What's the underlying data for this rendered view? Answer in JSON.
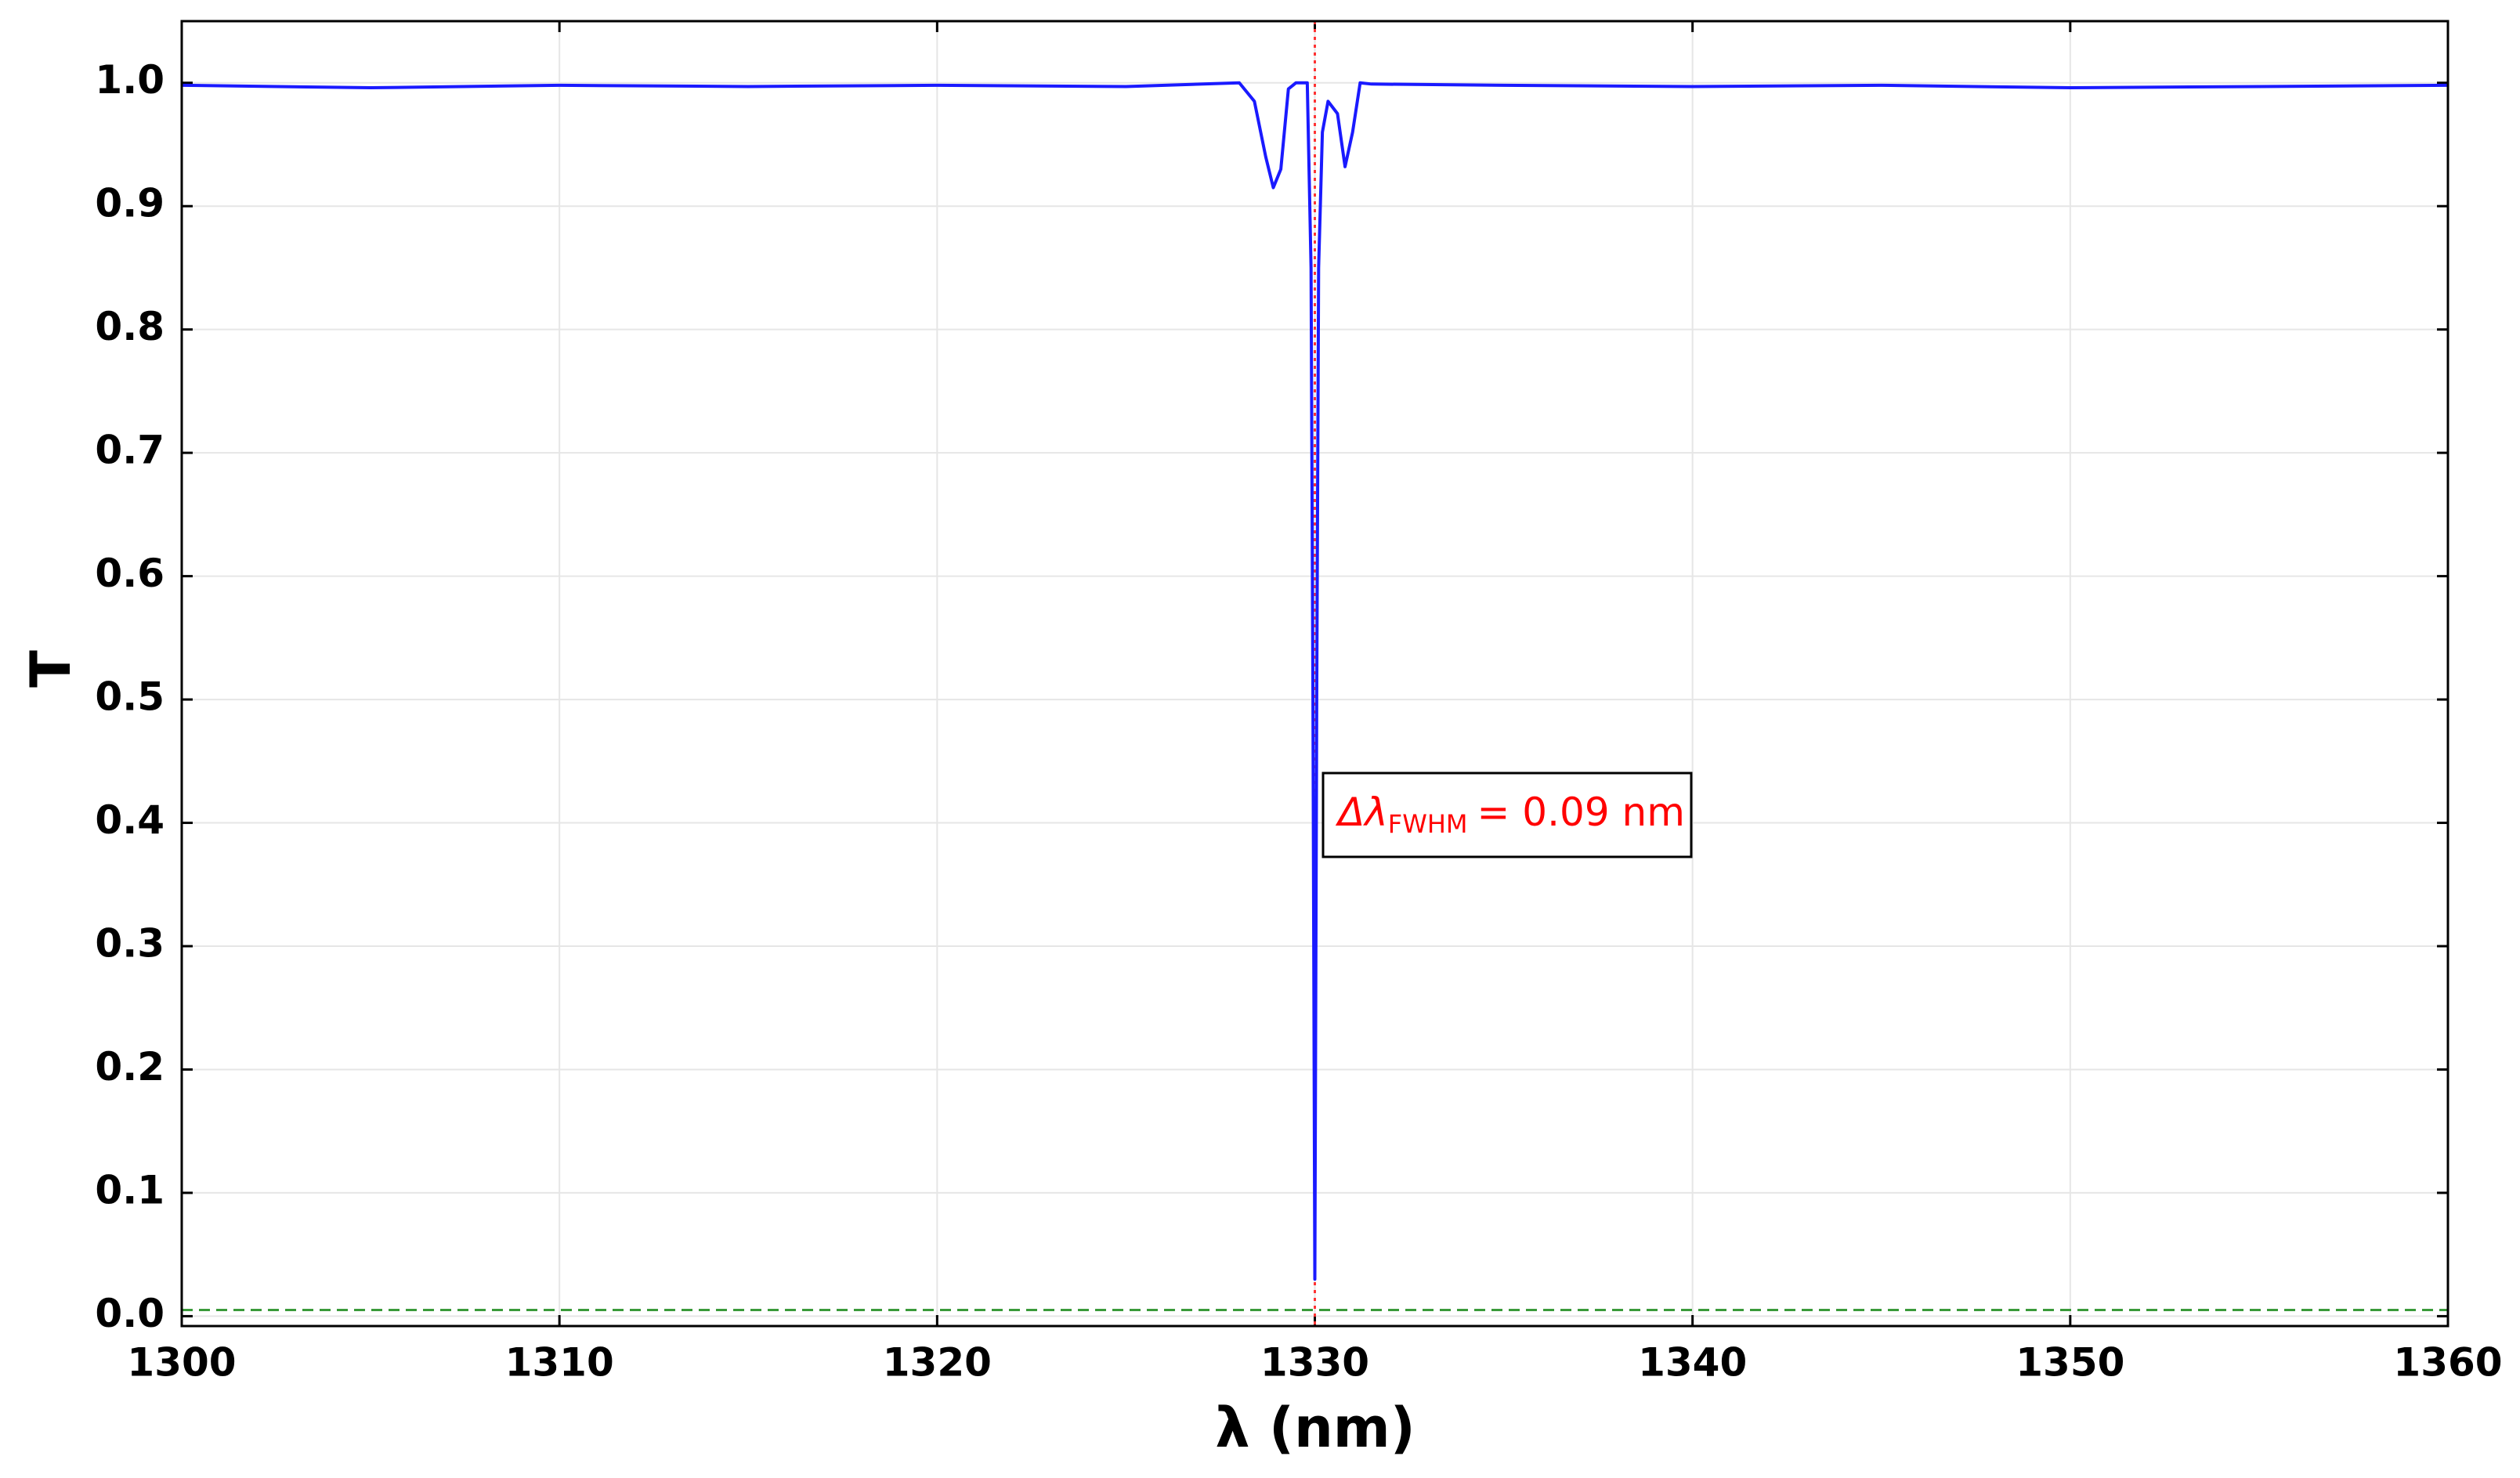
{
  "chart_data": {
    "type": "line",
    "xlabel": "λ (nm)",
    "ylabel": "T",
    "x": [
      1300,
      1305,
      1310,
      1315,
      1320,
      1325,
      1328,
      1328.4,
      1328.7,
      1328.9,
      1329.1,
      1329.3,
      1329.5,
      1329.8,
      1329.9,
      1329.95,
      1330,
      1330.05,
      1330.1,
      1330.2,
      1330.35,
      1330.6,
      1330.8,
      1331.0,
      1331.2,
      1331.5,
      1335,
      1340,
      1345,
      1350,
      1355,
      1360
    ],
    "series": [
      {
        "color": "#1a1aff",
        "values": [
          0.998,
          0.996,
          0.998,
          0.997,
          0.998,
          0.997,
          1.0,
          0.985,
          0.94,
          0.915,
          0.93,
          0.995,
          1.0,
          1.0,
          0.85,
          0.5,
          0.03,
          0.5,
          0.85,
          0.96,
          0.985,
          0.975,
          0.932,
          0.96,
          1.0,
          0.999,
          0.998,
          0.997,
          0.998,
          0.996,
          0.997,
          0.998
        ]
      }
    ],
    "xlim": [
      1300,
      1360
    ],
    "ylim": [
      -0.008,
      1.05
    ],
    "xticks": [
      1300,
      1310,
      1320,
      1330,
      1340,
      1350,
      1360
    ],
    "yticks": [
      {
        "value": 0,
        "label": "0.0"
      },
      0.1,
      0.2,
      0.3,
      0.4,
      0.5,
      0.6,
      0.7,
      0.8,
      0.9,
      {
        "value": 1,
        "label": "1.0"
      }
    ],
    "grid": true,
    "vline": {
      "x": 1330,
      "color": "#ff3333"
    },
    "hline": {
      "y": 0.005,
      "color": "#3a9a3a"
    },
    "annotation": {
      "prefix": "Δλ",
      "subscript": "FWHM",
      "suffix": "= 0.09 nm",
      "color": "#ff0000"
    }
  }
}
